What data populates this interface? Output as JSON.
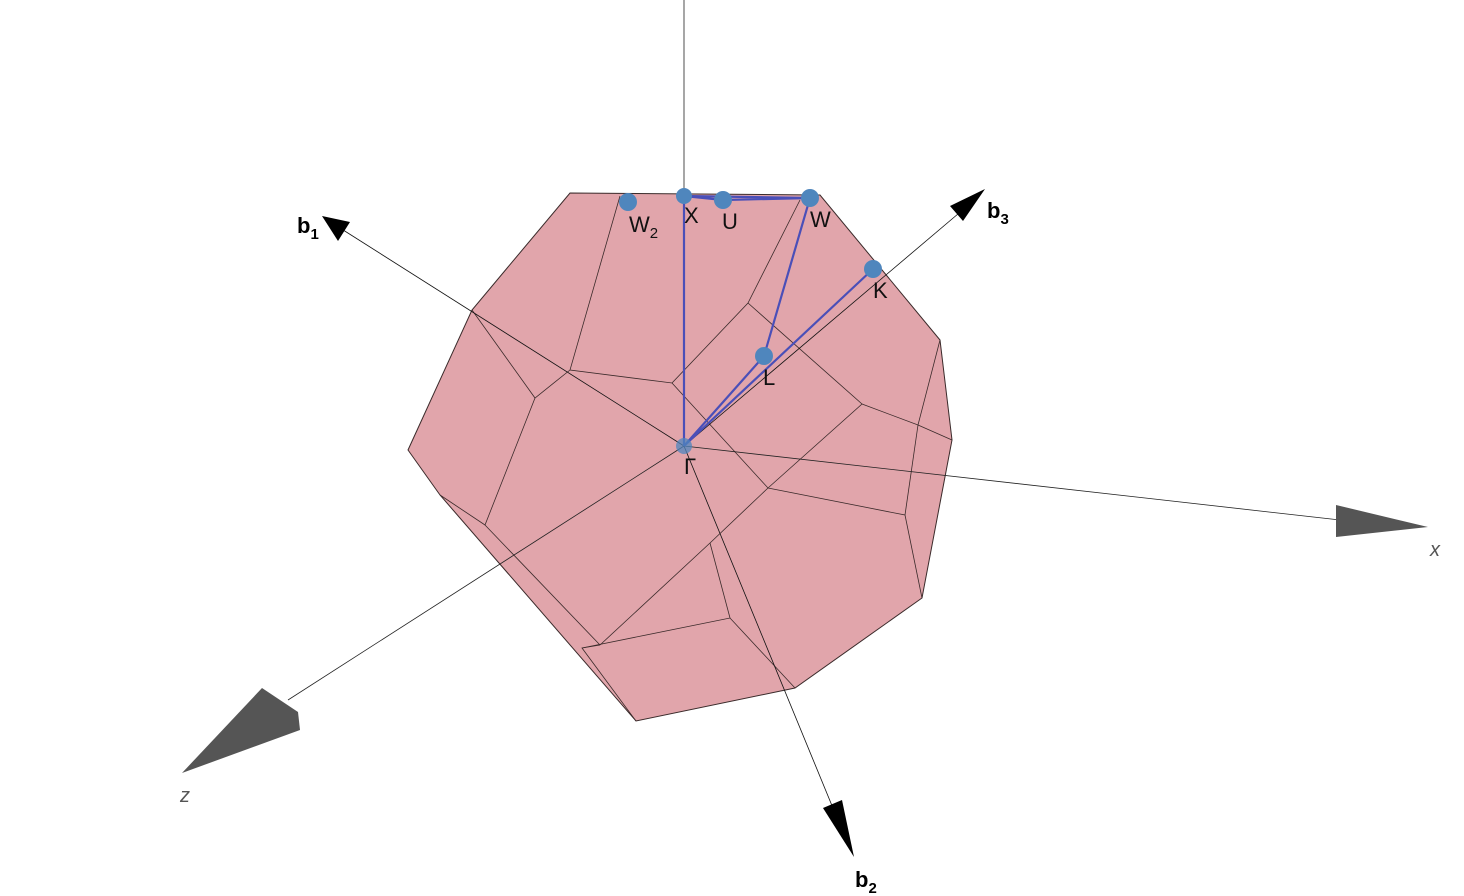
{
  "colors": {
    "solid_fill": "#e1a5ab",
    "solid_edge": "#3a2a2a",
    "path": "#4a4fb8",
    "point": "#4f86bd",
    "axis_arrow": "#555555",
    "vector_arrow": "#000000"
  },
  "axes": {
    "x_label": "x",
    "z_label": "z"
  },
  "vectors": {
    "b1": {
      "base": "b",
      "sub": "1"
    },
    "b2": {
      "base": "b",
      "sub": "2"
    },
    "b3": {
      "base": "b",
      "sub": "3"
    }
  },
  "points": [
    {
      "id": "gamma",
      "label": "Γ",
      "sub": ""
    },
    {
      "id": "x",
      "label": "X",
      "sub": ""
    },
    {
      "id": "u",
      "label": "U",
      "sub": ""
    },
    {
      "id": "w",
      "label": "W",
      "sub": ""
    },
    {
      "id": "k",
      "label": "K",
      "sub": ""
    },
    {
      "id": "l",
      "label": "L",
      "sub": ""
    },
    {
      "id": "w2",
      "label": "W",
      "sub": "2"
    }
  ],
  "path_sequence": [
    "Γ",
    "X",
    "U",
    "W",
    "L",
    "Γ",
    "K"
  ]
}
